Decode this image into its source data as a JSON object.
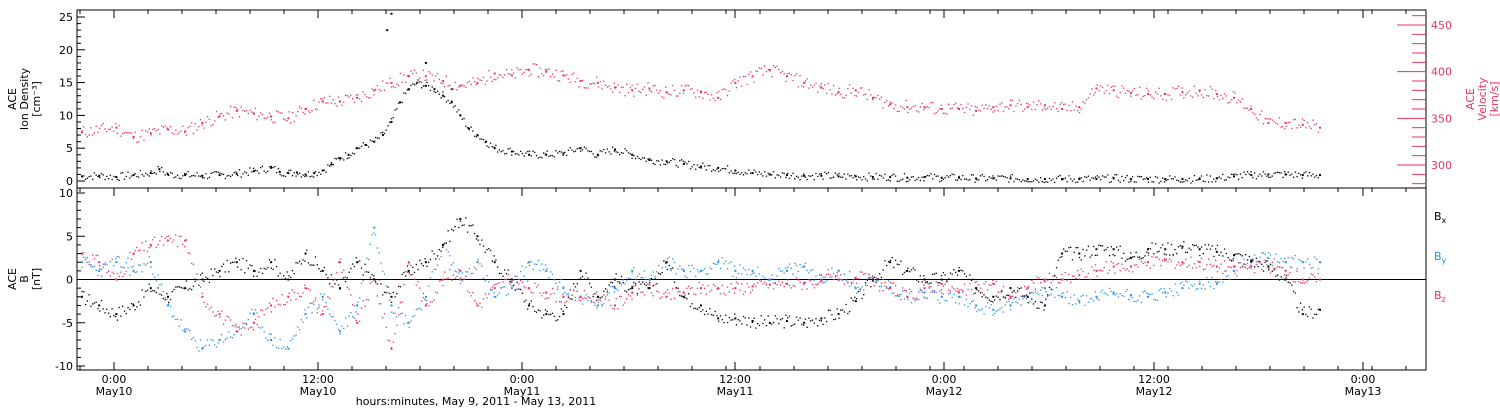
{
  "chart_data": [
    {
      "type": "scatter",
      "title": "",
      "ylabel_left": [
        "ACE",
        "Ion Density",
        "[cm⁻³]"
      ],
      "ylabel_right": [
        "ACE",
        "Velocity",
        "[km/s]"
      ],
      "ylim_left": [
        0,
        26
      ],
      "ylim_right": [
        270,
        465
      ],
      "yticks_left": [
        0,
        5,
        10,
        15,
        20,
        25
      ],
      "yticks_right": [
        300,
        350,
        400,
        450
      ],
      "grid": false,
      "series": [
        {
          "axis": "left",
          "color": "#000000",
          "x": [
            0,
            2,
            4,
            6,
            8,
            9,
            10,
            12,
            14,
            16,
            18,
            20,
            22,
            23,
            24,
            25,
            26,
            27,
            28,
            29,
            30,
            31,
            32,
            33,
            34,
            35,
            36,
            37,
            38,
            39,
            40,
            41,
            42,
            43,
            44,
            45,
            46,
            47,
            48,
            50,
            52,
            54,
            56,
            58,
            60,
            62,
            64,
            66,
            68,
            70,
            72,
            74,
            76,
            78,
            80,
            82,
            84,
            86,
            88,
            90,
            92,
            94,
            96,
            98,
            100,
            102,
            104,
            106,
            108,
            110,
            112,
            114,
            116,
            118,
            120,
            122,
            124,
            126,
            128,
            130,
            132,
            134,
            136,
            138,
            140,
            142,
            144
          ],
          "y": [
            0.7,
            0.8,
            0.6,
            0.9,
            1.2,
            1.8,
            1.0,
            0.9,
            0.8,
            0.9,
            1.1,
            1.5,
            2.0,
            1.4,
            1.2,
            1.3,
            1.0,
            1.2,
            1.6,
            2.5,
            3.5,
            4.0,
            5.0,
            5.5,
            6.0,
            7.0,
            9.0,
            12.0,
            14.0,
            15.0,
            14.5,
            14.0,
            13.0,
            12.0,
            10.0,
            8.0,
            7.0,
            6.0,
            5.0,
            4.5,
            4.0,
            4.0,
            4.2,
            5.0,
            4.0,
            4.8,
            4.0,
            3.2,
            3.0,
            2.6,
            2.2,
            2.0,
            1.6,
            1.2,
            1.0,
            0.9,
            0.8,
            0.8,
            0.7,
            0.7,
            0.6,
            0.6,
            0.5,
            0.6,
            0.5,
            0.5,
            0.4,
            0.4,
            0.4,
            0.3,
            0.3,
            0.3,
            0.3,
            0.3,
            0.4,
            0.3,
            0.3,
            0.3,
            0.3,
            0.3,
            0.4,
            0.7,
            0.9,
            1.0,
            1.0,
            0.9,
            0.9
          ],
          "spikes": [
            {
              "x": 36,
              "y": 25.5
            },
            {
              "x": 35.5,
              "y": 23.0
            },
            {
              "x": 40,
              "y": 18.0
            },
            {
              "x": 43,
              "y": 14.0
            }
          ]
        },
        {
          "axis": "right",
          "color": "#e8335f",
          "x": [
            0,
            4,
            6,
            8,
            10,
            12,
            14,
            16,
            18,
            20,
            22,
            24,
            26,
            28,
            30,
            32,
            34,
            36,
            38,
            40,
            42,
            44,
            46,
            48,
            50,
            52,
            54,
            56,
            58,
            60,
            62,
            64,
            66,
            68,
            70,
            72,
            74,
            76,
            78,
            80,
            82,
            84,
            86,
            88,
            90,
            92,
            94,
            96,
            98,
            100,
            102,
            104,
            106,
            108,
            110,
            112,
            114,
            116,
            118,
            120,
            122,
            124,
            126,
            128,
            130,
            132,
            134,
            136,
            138,
            140,
            142,
            144
          ],
          "y": [
            335,
            340,
            330,
            334,
            338,
            336,
            345,
            352,
            358,
            355,
            352,
            350,
            360,
            368,
            368,
            372,
            380,
            388,
            395,
            395,
            390,
            385,
            388,
            398,
            396,
            402,
            400,
            396,
            390,
            388,
            383,
            380,
            382,
            378,
            380,
            378,
            372,
            388,
            395,
            402,
            395,
            388,
            383,
            378,
            380,
            372,
            365,
            362,
            362,
            360,
            360,
            358,
            362,
            364,
            362,
            364,
            360,
            362,
            382,
            380,
            377,
            376,
            376,
            378,
            380,
            376,
            372,
            360,
            345,
            345,
            343,
            340
          ]
        }
      ]
    },
    {
      "type": "scatter",
      "title": "",
      "ylabel": [
        "ACE",
        "B",
        "[nT]"
      ],
      "ylim": [
        -10.5,
        10.5
      ],
      "yticks": [
        -10,
        -5,
        0,
        5,
        10
      ],
      "zero_line": true,
      "grid": false,
      "legend_position": "right",
      "x_tick_labels": [
        {
          "time": "0:00",
          "date": "May10"
        },
        {
          "time": "12:00",
          "date": "May10"
        },
        {
          "time": "0:00",
          "date": "May11"
        },
        {
          "time": "12:00",
          "date": "May11"
        },
        {
          "time": "0:00",
          "date": "May12"
        },
        {
          "time": "12:00",
          "date": "May12"
        },
        {
          "time": "0:00",
          "date": "May13"
        }
      ],
      "xlabel": "hours:minutes, May  9, 2011 - May 13, 2011",
      "series": [
        {
          "name": "Bx",
          "base": "B",
          "sub": "x",
          "color": "#000000",
          "x": [
            0,
            2,
            4,
            6,
            8,
            10,
            12,
            14,
            16,
            18,
            20,
            22,
            24,
            26,
            28,
            30,
            32,
            34,
            36,
            38,
            40,
            42,
            44,
            46,
            48,
            50,
            52,
            54,
            56,
            58,
            60,
            62,
            64,
            66,
            68,
            70,
            72,
            74,
            76,
            78,
            80,
            82,
            84,
            86,
            88,
            90,
            92,
            94,
            96,
            98,
            100,
            102,
            104,
            106,
            108,
            110,
            112,
            114,
            116,
            118,
            120,
            122,
            124,
            126,
            128,
            130,
            132,
            134,
            136,
            138,
            140,
            142,
            144
          ],
          "y": [
            -2,
            -3,
            -4,
            -3,
            -1,
            -2,
            -1,
            0,
            1,
            2,
            1,
            2,
            0,
            3,
            1,
            -1,
            2,
            0,
            -2,
            1,
            2,
            4,
            7,
            5,
            2,
            0,
            -3,
            -4,
            -4,
            1,
            -2,
            0,
            -1,
            -1,
            2,
            -2,
            -3,
            -4.5,
            -4.5,
            -4.8,
            -5,
            -4.8,
            -5,
            -4.5,
            -4,
            -2.5,
            0,
            2,
            1,
            0,
            0,
            1,
            -1,
            -2,
            -1,
            -2,
            -3,
            3,
            3,
            3.5,
            3.5,
            2.5,
            3.5,
            3.5,
            3.8,
            3.5,
            3.2,
            2.8,
            2.2,
            1.5,
            0,
            -4,
            -3.5
          ]
        },
        {
          "name": "By",
          "base": "B",
          "sub": "y",
          "color": "#2b8fe6",
          "x": [
            0,
            2,
            4,
            6,
            8,
            10,
            12,
            14,
            16,
            18,
            20,
            22,
            24,
            26,
            28,
            30,
            32,
            34,
            36,
            38,
            40,
            42,
            44,
            46,
            48,
            50,
            52,
            54,
            56,
            58,
            60,
            62,
            64,
            66,
            68,
            70,
            72,
            74,
            76,
            78,
            80,
            82,
            84,
            86,
            88,
            90,
            92,
            94,
            96,
            98,
            100,
            102,
            104,
            106,
            108,
            110,
            112,
            114,
            116,
            118,
            120,
            122,
            124,
            126,
            128,
            130,
            132,
            134,
            136,
            138,
            140,
            142,
            144
          ],
          "y": [
            2,
            1,
            2,
            1,
            2,
            -3,
            -6,
            -8,
            -7,
            -6,
            -4,
            -7,
            -8,
            -4,
            -2,
            -6,
            -3,
            6,
            -3,
            -5,
            -2,
            4,
            0,
            2,
            -2,
            -1,
            2,
            1,
            -1,
            -2,
            -3,
            -1,
            1,
            0,
            2,
            1,
            1,
            2,
            1,
            1,
            0,
            1,
            1.5,
            0,
            1,
            -1,
            0,
            -1,
            -2,
            -1.5,
            -2,
            -2,
            -3,
            -3.5,
            -3,
            -2,
            -1,
            -2,
            -2.5,
            -2,
            -1.5,
            -1.8,
            -2,
            -1.5,
            -1,
            -0.5,
            -0.5,
            1,
            2,
            2.5,
            2,
            2,
            2
          ]
        },
        {
          "name": "Bz",
          "base": "B",
          "sub": "z",
          "color": "#e8335f",
          "x": [
            0,
            2,
            4,
            6,
            8,
            10,
            12,
            14,
            16,
            18,
            20,
            22,
            24,
            26,
            28,
            30,
            32,
            34,
            36,
            38,
            40,
            42,
            44,
            46,
            48,
            50,
            52,
            54,
            56,
            58,
            60,
            62,
            64,
            66,
            68,
            70,
            72,
            74,
            76,
            78,
            80,
            82,
            84,
            86,
            88,
            90,
            92,
            94,
            96,
            98,
            100,
            102,
            104,
            106,
            108,
            110,
            112,
            114,
            116,
            118,
            120,
            122,
            124,
            126,
            128,
            130,
            132,
            134,
            136,
            138,
            140,
            142,
            144
          ],
          "y": [
            3,
            2,
            0,
            3,
            4,
            4.5,
            4.5,
            -2,
            -4,
            -6,
            -5,
            -3,
            -2,
            -1,
            -4,
            2,
            -5,
            0,
            -8,
            2,
            -3,
            0,
            1,
            -3,
            -1,
            0,
            -1,
            -1.5,
            -2,
            -2,
            -2,
            -3,
            -1.5,
            -1,
            -2,
            -1.5,
            -1,
            -1,
            -1,
            -0.8,
            -0.6,
            -0.5,
            -0.4,
            -0.2,
            0,
            0.2,
            -0.2,
            -1,
            -2,
            -1,
            -0.5,
            -1.5,
            -1,
            -0.5,
            -2,
            -1,
            0,
            0,
            0.5,
            1,
            1.5,
            1.5,
            2,
            2.2,
            2,
            2,
            1.5,
            1.5,
            1.5,
            1.5,
            1,
            0,
            0
          ]
        }
      ]
    }
  ]
}
